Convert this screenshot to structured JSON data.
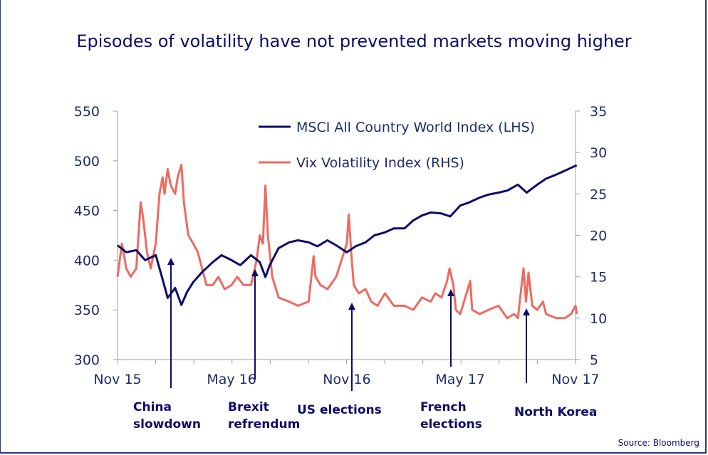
{
  "chart_data": {
    "type": "line",
    "title": "Episodes of volatility have not prevented markets moving higher",
    "x_tick_labels": [
      "Nov 15",
      "May 16",
      "Nov 16",
      "May 17",
      "Nov 17"
    ],
    "x_ticks": [
      "2015-11-01",
      "2016-05-01",
      "2016-11-01",
      "2017-05-01",
      "2017-11-01"
    ],
    "xlim": [
      "2015-11-01",
      "2017-11-01"
    ],
    "y_left": {
      "ylim": [
        300,
        550
      ],
      "ticks": [
        300,
        350,
        400,
        450,
        500,
        550
      ]
    },
    "y_right": {
      "ylim": [
        5,
        35
      ],
      "ticks": [
        5,
        10,
        15,
        20,
        25,
        30,
        35
      ]
    },
    "grid": false,
    "legend_placement": "top-center",
    "series": [
      {
        "name": "MSCI All Country World Index (LHS)",
        "axis": "left",
        "color": "#0c0c6a",
        "points": [
          [
            "2015-11-01",
            415
          ],
          [
            "2015-11-15",
            408
          ],
          [
            "2015-12-01",
            410
          ],
          [
            "2015-12-15",
            400
          ],
          [
            "2016-01-01",
            405
          ],
          [
            "2016-01-10",
            385
          ],
          [
            "2016-01-20",
            362
          ],
          [
            "2016-02-01",
            372
          ],
          [
            "2016-02-11",
            355
          ],
          [
            "2016-02-20",
            368
          ],
          [
            "2016-03-01",
            378
          ],
          [
            "2016-03-15",
            388
          ],
          [
            "2016-04-01",
            398
          ],
          [
            "2016-04-15",
            405
          ],
          [
            "2016-05-01",
            400
          ],
          [
            "2016-05-15",
            395
          ],
          [
            "2016-06-01",
            405
          ],
          [
            "2016-06-15",
            398
          ],
          [
            "2016-06-24",
            383
          ],
          [
            "2016-07-01",
            395
          ],
          [
            "2016-07-15",
            412
          ],
          [
            "2016-08-01",
            418
          ],
          [
            "2016-08-15",
            420
          ],
          [
            "2016-09-01",
            418
          ],
          [
            "2016-09-15",
            414
          ],
          [
            "2016-10-01",
            420
          ],
          [
            "2016-10-15",
            415
          ],
          [
            "2016-11-01",
            408
          ],
          [
            "2016-11-15",
            414
          ],
          [
            "2016-12-01",
            418
          ],
          [
            "2016-12-15",
            425
          ],
          [
            "2017-01-01",
            428
          ],
          [
            "2017-01-15",
            432
          ],
          [
            "2017-02-01",
            432
          ],
          [
            "2017-02-15",
            440
          ],
          [
            "2017-03-01",
            445
          ],
          [
            "2017-03-15",
            448
          ],
          [
            "2017-04-01",
            447
          ],
          [
            "2017-04-15",
            444
          ],
          [
            "2017-05-01",
            455
          ],
          [
            "2017-05-15",
            458
          ],
          [
            "2017-06-01",
            463
          ],
          [
            "2017-06-15",
            466
          ],
          [
            "2017-07-01",
            468
          ],
          [
            "2017-07-15",
            470
          ],
          [
            "2017-08-01",
            476
          ],
          [
            "2017-08-15",
            468
          ],
          [
            "2017-09-01",
            476
          ],
          [
            "2017-09-15",
            482
          ],
          [
            "2017-10-01",
            486
          ],
          [
            "2017-10-15",
            490
          ],
          [
            "2017-11-01",
            495
          ],
          [
            "2017-11-03",
            495
          ]
        ]
      },
      {
        "name": "Vix Volatility Index (RHS)",
        "axis": "right",
        "color": "#ee6a60",
        "points": [
          [
            "2015-11-01",
            15
          ],
          [
            "2015-11-08",
            19
          ],
          [
            "2015-11-15",
            16
          ],
          [
            "2015-11-22",
            15
          ],
          [
            "2015-12-01",
            16
          ],
          [
            "2015-12-08",
            24
          ],
          [
            "2015-12-12",
            22
          ],
          [
            "2015-12-18",
            18
          ],
          [
            "2015-12-24",
            16
          ],
          [
            "2016-01-01",
            19
          ],
          [
            "2016-01-07",
            25
          ],
          [
            "2016-01-12",
            27
          ],
          [
            "2016-01-15",
            25
          ],
          [
            "2016-01-20",
            28
          ],
          [
            "2016-01-25",
            26
          ],
          [
            "2016-02-01",
            25
          ],
          [
            "2016-02-05",
            27
          ],
          [
            "2016-02-11",
            28.5
          ],
          [
            "2016-02-15",
            24
          ],
          [
            "2016-02-22",
            20
          ],
          [
            "2016-03-01",
            19
          ],
          [
            "2016-03-08",
            18
          ],
          [
            "2016-03-15",
            16
          ],
          [
            "2016-03-22",
            14
          ],
          [
            "2016-04-01",
            14
          ],
          [
            "2016-04-10",
            15
          ],
          [
            "2016-04-20",
            13.5
          ],
          [
            "2016-05-01",
            14
          ],
          [
            "2016-05-10",
            15
          ],
          [
            "2016-05-20",
            14
          ],
          [
            "2016-06-01",
            14
          ],
          [
            "2016-06-10",
            17
          ],
          [
            "2016-06-15",
            20
          ],
          [
            "2016-06-20",
            19
          ],
          [
            "2016-06-24",
            26
          ],
          [
            "2016-06-28",
            20
          ],
          [
            "2016-07-05",
            15
          ],
          [
            "2016-07-15",
            12.5
          ],
          [
            "2016-08-01",
            12
          ],
          [
            "2016-08-15",
            11.5
          ],
          [
            "2016-09-01",
            12
          ],
          [
            "2016-09-09",
            17.5
          ],
          [
            "2016-09-12",
            15
          ],
          [
            "2016-09-20",
            14
          ],
          [
            "2016-10-01",
            13.5
          ],
          [
            "2016-10-15",
            15
          ],
          [
            "2016-11-01",
            19
          ],
          [
            "2016-11-04",
            22.5
          ],
          [
            "2016-11-08",
            18
          ],
          [
            "2016-11-12",
            14
          ],
          [
            "2016-11-20",
            13
          ],
          [
            "2016-12-01",
            13.5
          ],
          [
            "2016-12-10",
            12
          ],
          [
            "2016-12-20",
            11.5
          ],
          [
            "2017-01-01",
            13
          ],
          [
            "2017-01-15",
            11.5
          ],
          [
            "2017-02-01",
            11.5
          ],
          [
            "2017-02-15",
            11
          ],
          [
            "2017-03-01",
            12.5
          ],
          [
            "2017-03-15",
            12
          ],
          [
            "2017-03-22",
            13
          ],
          [
            "2017-04-01",
            12.5
          ],
          [
            "2017-04-10",
            14.5
          ],
          [
            "2017-04-14",
            16
          ],
          [
            "2017-04-20",
            14
          ],
          [
            "2017-04-24",
            11
          ],
          [
            "2017-05-01",
            10.5
          ],
          [
            "2017-05-17",
            14.5
          ],
          [
            "2017-05-20",
            11
          ],
          [
            "2017-06-01",
            10.5
          ],
          [
            "2017-06-15",
            11
          ],
          [
            "2017-07-01",
            11.5
          ],
          [
            "2017-07-15",
            10
          ],
          [
            "2017-07-26",
            10.5
          ],
          [
            "2017-08-01",
            10
          ],
          [
            "2017-08-10",
            16
          ],
          [
            "2017-08-14",
            12
          ],
          [
            "2017-08-18",
            15.5
          ],
          [
            "2017-08-24",
            11.5
          ],
          [
            "2017-09-01",
            11
          ],
          [
            "2017-09-10",
            12
          ],
          [
            "2017-09-15",
            10.5
          ],
          [
            "2017-10-01",
            10
          ],
          [
            "2017-10-15",
            10
          ],
          [
            "2017-10-25",
            10.5
          ],
          [
            "2017-11-01",
            11.5
          ],
          [
            "2017-11-03",
            10.5
          ]
        ]
      }
    ],
    "annotations": [
      {
        "lines": [
          "China",
          "slowdown"
        ]
      },
      {
        "lines": [
          "Brexit",
          "refrendum"
        ]
      },
      {
        "lines": [
          "US elections"
        ]
      },
      {
        "lines": [
          "French",
          "elections"
        ]
      },
      {
        "lines": [
          "North Korea"
        ]
      }
    ],
    "source": "Source: Bloomberg"
  }
}
